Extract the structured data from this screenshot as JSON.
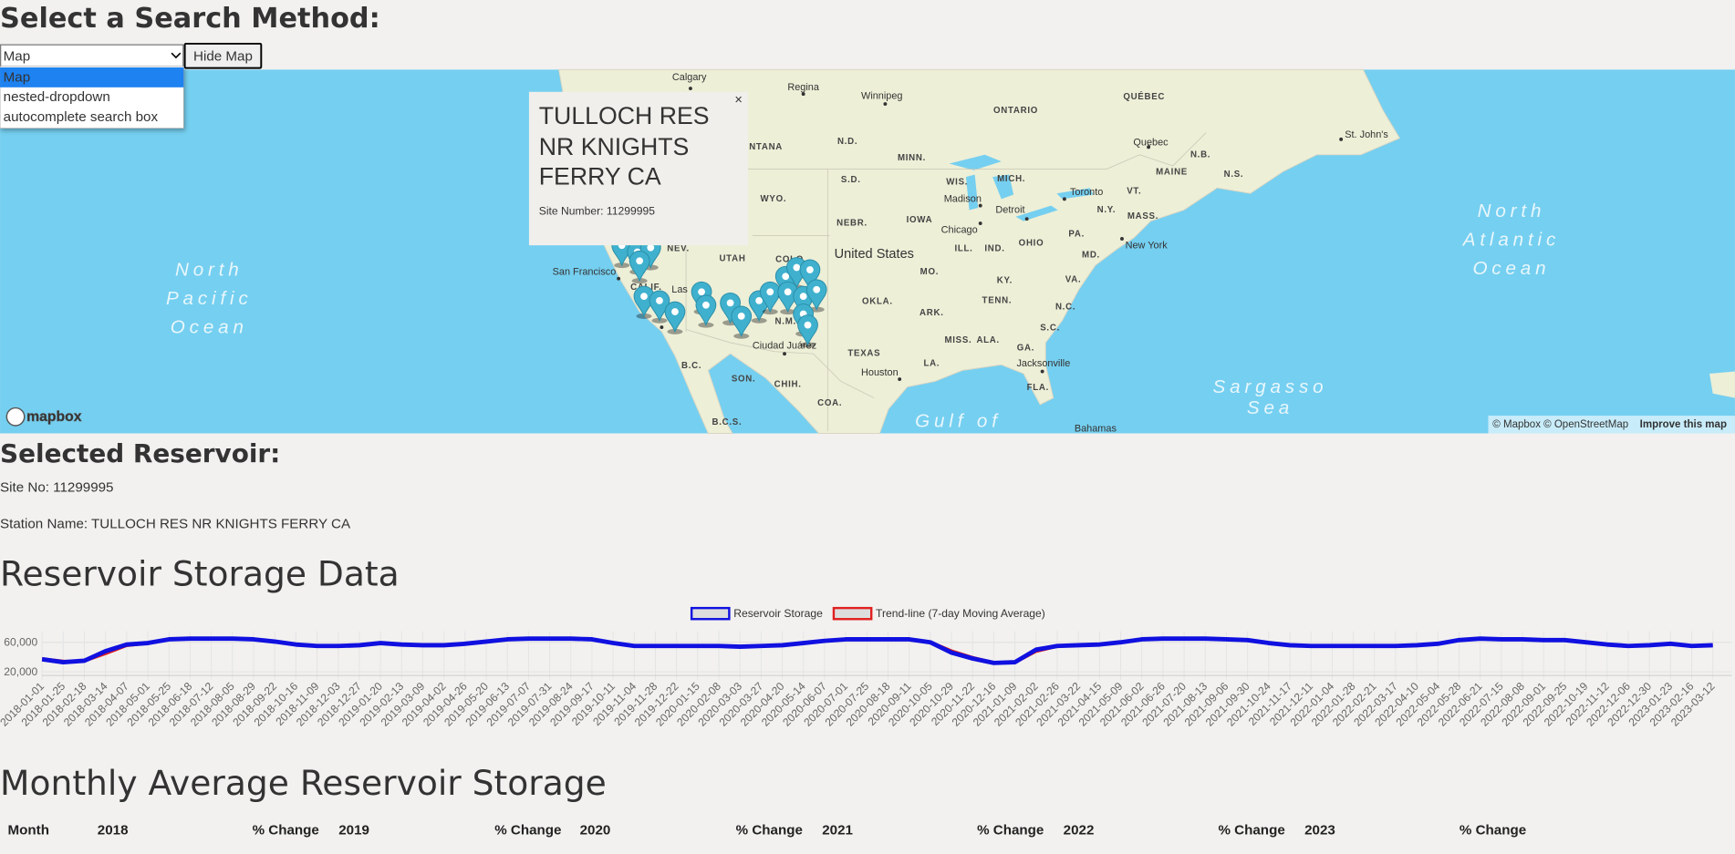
{
  "header": {
    "title": "Select a Search Method:"
  },
  "search": {
    "selected": "Map",
    "options": [
      "Map",
      "nested-dropdown",
      "autocomplete search box"
    ],
    "button": "Hide Map"
  },
  "map": {
    "labels": [
      "Calgary",
      "Regina",
      "Winnipeg",
      "ONTARIO",
      "QUÉBEC",
      "NTANA",
      "N.D.",
      "MINN.",
      "S.D.",
      "WYO.",
      "NEBR.",
      "IOWA",
      "WIS.",
      "MICH.",
      "Madison",
      "Detroit",
      "Toronto",
      "Chicago",
      "ILL.",
      "IND.",
      "OHIO",
      "PA.",
      "N.Y.",
      "VT.",
      "MAINE",
      "N.B.",
      "N.S.",
      "Quebec",
      "St. John's",
      "MASS.",
      "New York",
      "MD.",
      "UTAH",
      "NEV.",
      "COLO.",
      "United States",
      "MO.",
      "KY.",
      "VA.",
      "San Francisco",
      "CALIF.",
      "Las",
      "OKLA.",
      "TENN.",
      "N.C.",
      "ARK.",
      "MISS.",
      "ALA.",
      "S.C.",
      "GA.",
      "TEXAS",
      "LA.",
      "Houston",
      "Jacksonville",
      "FLA.",
      "Ciudad Juárez",
      "N.M.",
      "SON.",
      "CHIH.",
      "COA.",
      "B.C.",
      "B.C.S.",
      "Gulf of",
      "Bahamas",
      "North",
      "Atlantic",
      "Ocean",
      "North",
      "Pacific",
      "Ocean",
      "Sargasso",
      "Sea"
    ],
    "popup": {
      "title": "TULLOCH RES NR KNIGHTS FERRY CA",
      "site": "Site Number: 11299995",
      "close": "×"
    },
    "attribution": {
      "logo": "mapbox",
      "credits": "© Mapbox © OpenStreetMap",
      "improve": "Improve this map"
    }
  },
  "selected": {
    "title": "Selected Reservoir:",
    "site_no": "Site No: 11299995",
    "station_name": "Station Name: TULLOCH RES NR KNIGHTS FERRY CA"
  },
  "chart_data": {
    "type": "line",
    "title": "Reservoir Storage Data",
    "categories": [
      "2018-01-01",
      "2018-01-25",
      "2018-02-18",
      "2018-03-14",
      "2018-04-07",
      "2018-05-01",
      "2018-05-25",
      "2018-06-18",
      "2018-07-12",
      "2018-08-05",
      "2018-08-29",
      "2018-09-22",
      "2018-10-16",
      "2018-11-09",
      "2018-12-03",
      "2018-12-27",
      "2019-01-20",
      "2019-02-13",
      "2019-03-09",
      "2019-04-02",
      "2019-04-26",
      "2019-05-20",
      "2019-06-13",
      "2019-07-07",
      "2019-07-31",
      "2019-08-24",
      "2019-09-17",
      "2019-10-11",
      "2019-11-04",
      "2019-11-28",
      "2019-12-22",
      "2020-01-15",
      "2020-02-08",
      "2020-03-03",
      "2020-03-27",
      "2020-04-20",
      "2020-05-14",
      "2020-06-07",
      "2020-07-01",
      "2020-07-25",
      "2020-08-18",
      "2020-09-11",
      "2020-10-05",
      "2020-10-29",
      "2020-11-22",
      "2020-12-16",
      "2021-01-09",
      "2021-02-02",
      "2021-02-26",
      "2021-03-22",
      "2021-04-15",
      "2021-05-09",
      "2021-06-02",
      "2021-06-26",
      "2021-07-20",
      "2021-08-13",
      "2021-09-06",
      "2021-09-30",
      "2021-10-24",
      "2021-11-17",
      "2021-12-11",
      "2022-01-04",
      "2022-01-28",
      "2022-02-21",
      "2022-03-17",
      "2022-04-10",
      "2022-05-04",
      "2022-05-28",
      "2022-06-21",
      "2022-07-15",
      "2022-08-08",
      "2022-09-01",
      "2022-09-25",
      "2022-10-19",
      "2022-11-12",
      "2022-12-06",
      "2022-12-30",
      "2023-01-23",
      "2023-02-16",
      "2023-03-12"
    ],
    "series": [
      {
        "name": "Reservoir Storage",
        "color": "#1010e0",
        "values": [
          37000,
          33000,
          35000,
          48000,
          57000,
          59000,
          64000,
          65000,
          65000,
          65000,
          64000,
          61000,
          57000,
          55000,
          55000,
          56000,
          59000,
          57000,
          56000,
          56000,
          58000,
          61000,
          64000,
          65000,
          65000,
          65000,
          64000,
          59000,
          55000,
          55000,
          55000,
          55000,
          55000,
          54000,
          55000,
          56000,
          59000,
          62000,
          64000,
          64000,
          64000,
          64000,
          60000,
          46000,
          38000,
          32000,
          33000,
          50000,
          55000,
          56000,
          57000,
          60000,
          64000,
          65000,
          65000,
          65000,
          64000,
          63000,
          59000,
          56000,
          55000,
          55000,
          55000,
          55000,
          55000,
          56000,
          58000,
          63000,
          65000,
          64000,
          64000,
          63000,
          63000,
          60000,
          57000,
          55000,
          56000,
          58000,
          55000,
          56000
        ]
      },
      {
        "name": "Trend-line (7-day Moving Average)",
        "color": "#e02020",
        "values": [
          38000,
          35000,
          34000,
          44000,
          55000,
          58000,
          63000,
          65000,
          65000,
          65000,
          64000,
          62000,
          58000,
          56000,
          55000,
          56000,
          58000,
          58000,
          56000,
          56000,
          57000,
          60000,
          63000,
          65000,
          65000,
          65000,
          64000,
          60000,
          56000,
          55000,
          55000,
          55000,
          55000,
          54000,
          55000,
          56000,
          58000,
          61000,
          63000,
          64000,
          64000,
          64000,
          61000,
          49000,
          40000,
          33000,
          32000,
          47000,
          54000,
          56000,
          57000,
          59000,
          63000,
          65000,
          65000,
          65000,
          64000,
          63000,
          60000,
          57000,
          55000,
          55000,
          55000,
          55000,
          55000,
          56000,
          57000,
          62000,
          64000,
          64000,
          64000,
          63000,
          63000,
          61000,
          58000,
          56000,
          56000,
          57000,
          56000,
          56000
        ]
      }
    ],
    "ylim": [
      15000,
      75000
    ],
    "yticks": [
      {
        "value": 20000,
        "label": "20,000"
      },
      {
        "value": 60000,
        "label": "60,000"
      }
    ],
    "grid": true,
    "legend": "top"
  },
  "monthly": {
    "title": "Monthly Average Reservoir Storage",
    "headers": [
      "Month",
      "2018",
      "% Change",
      "2019",
      "% Change",
      "2020",
      "% Change",
      "2021",
      "% Change",
      "2022",
      "% Change",
      "2023",
      "% Change"
    ]
  }
}
